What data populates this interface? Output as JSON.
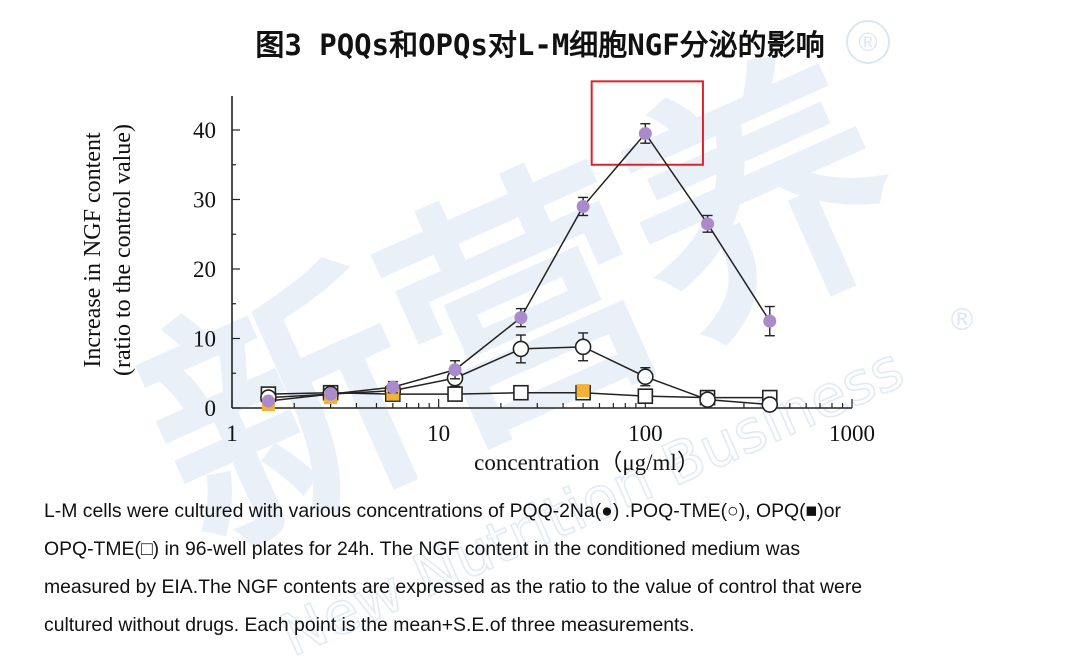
{
  "figure": {
    "title": "图3 PQQs和OPQs对L-M细胞NGF分泌的影响",
    "watermark_text": "新营养",
    "watermark_sub": "New Nutrition Business",
    "reg_symbol": "®"
  },
  "chart_data": {
    "type": "line",
    "x_scale": "log",
    "xlabel": "concentration（μg/ml）",
    "ylabel_line1": "Increase in NGF content",
    "ylabel_line2": "(ratio to the control value)",
    "xlim": [
      1,
      1000
    ],
    "ylim": [
      0,
      45
    ],
    "x_ticks": [
      1,
      10,
      100,
      1000
    ],
    "y_ticks": [
      0,
      10,
      20,
      30,
      40
    ],
    "grid": false,
    "highlight_box": {
      "x_range": [
        55,
        190
      ],
      "y_range": [
        35,
        47
      ],
      "color": "#d9242f"
    },
    "series": [
      {
        "name": "PQQ-2Na",
        "marker": "filled-circle",
        "color": "#a98bcc",
        "x": [
          1.5,
          3,
          6,
          12,
          25,
          50,
          100,
          200,
          400
        ],
        "y": [
          1,
          2,
          3,
          5.5,
          13,
          29,
          39.5,
          26.5,
          12.5
        ],
        "err": [
          0.4,
          0.5,
          0.8,
          1.3,
          1.3,
          1.3,
          1.4,
          1.2,
          2.1
        ]
      },
      {
        "name": "POQ-TME",
        "marker": "open-circle",
        "color": "#111111",
        "x": [
          1.5,
          3,
          6,
          12,
          25,
          50,
          100,
          200,
          400
        ],
        "y": [
          1.5,
          2,
          2.5,
          4.3,
          8.5,
          8.8,
          4.5,
          1.2,
          0.5
        ],
        "err": [
          0.3,
          0.4,
          0.6,
          1.2,
          2.0,
          2.0,
          1.3,
          0.4,
          0.3
        ]
      },
      {
        "name": "OPQ",
        "marker": "filled-square",
        "color": "#f2b23a",
        "x": [
          1.5,
          3,
          6,
          50
        ],
        "y": [
          0.5,
          1.5,
          2,
          2.5
        ],
        "err": [
          0,
          0,
          0,
          0
        ]
      },
      {
        "name": "OPQ-TME",
        "marker": "open-square",
        "color": "#111111",
        "x": [
          1.5,
          3,
          6,
          12,
          25,
          50,
          100,
          200,
          400
        ],
        "y": [
          2,
          2.2,
          2,
          2,
          2.2,
          2.2,
          1.7,
          1.5,
          1.5
        ],
        "err": [
          0,
          0,
          0,
          0,
          0,
          0,
          0,
          0,
          0
        ]
      }
    ]
  },
  "caption": {
    "line1": "L-M cells were cultured with various concentrations of PQQ-2Na(●) .POQ-TME(○), OPQ(■)or",
    "line2": "OPQ-TME(□) in 96-well plates for 24h. The NGF content in the conditioned medium was",
    "line3": "measured by EIA.The NGF contents are expressed as the ratio to the value of control that were",
    "line4": "cultured without drugs. Each point is the mean+S.E.of three measurements."
  }
}
